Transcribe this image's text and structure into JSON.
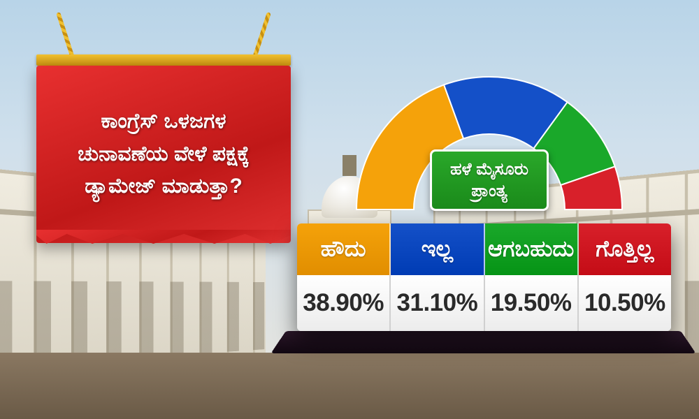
{
  "question": {
    "line1": "ಕಾಂಗ್ರೆಸ್ ಒಳಜಗಳ",
    "line2": "ಚುನಾವಣೆಯ ವೇಳೆ ಪಕ್ಷಕ್ಕೆ",
    "line3": "ಡ್ಯಾಮೇಜ್ ಮಾಡುತ್ತಾ?",
    "banner_color": "#d82020",
    "text_color": "#ffffff",
    "fontsize": 30
  },
  "region": {
    "line1": "ಹಳೆ ಮೈಸೂರು",
    "line2": "ಪ್ರಾಂತ್ಯ",
    "bg_color": "#1f9a1f",
    "text_color": "#ffffff"
  },
  "poll": {
    "type": "donut-arc",
    "options": [
      {
        "label": "ಹೌದು",
        "value": "38.90%",
        "pct": 38.9,
        "color": "#f5a20a"
      },
      {
        "label": "ಇಲ್ಲ",
        "value": "31.10%",
        "pct": 31.1,
        "color": "#1450c8"
      },
      {
        "label": "ಆಗಬಹುದು",
        "value": "19.50%",
        "pct": 19.5,
        "color": "#1aa82a"
      },
      {
        "label": "ಗೊತ್ತಿಲ್ಲ",
        "value": "10.50%",
        "pct": 10.5,
        "color": "#d8202a"
      }
    ],
    "label_fontsize": 32,
    "value_fontsize": 35,
    "value_color": "#2a2a2a",
    "value_bg": "#ffffff",
    "arc_inner_radius": 108,
    "arc_outer_radius": 190
  },
  "background": {
    "sky_top": "#b8d4e8",
    "sky_bottom": "#e8e4dc",
    "building_color": "#e8e2d2",
    "floor_color": "#6a5a46"
  }
}
